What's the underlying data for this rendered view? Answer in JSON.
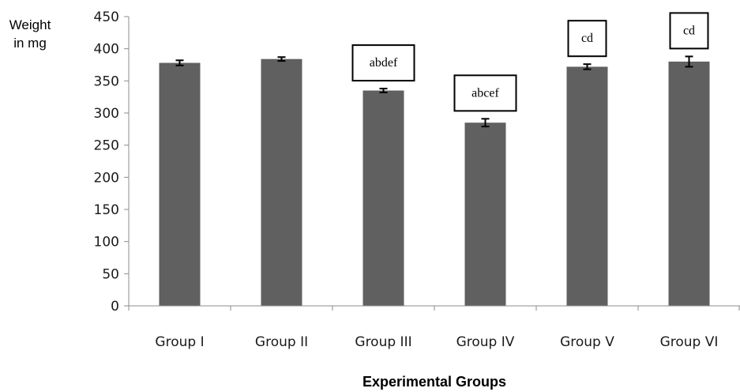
{
  "chart_data": {
    "type": "bar",
    "categories": [
      "Group I",
      "Group II",
      "Group III",
      "Group IV",
      "Group V",
      "Group VI"
    ],
    "values": [
      378,
      384,
      335,
      285,
      372,
      380
    ],
    "errors": [
      4,
      3,
      3,
      6,
      4,
      8
    ],
    "annotations": [
      "",
      "",
      "abdef",
      "abcef",
      "cd",
      "cd"
    ],
    "ylabel": [
      "Weight",
      "in mg"
    ],
    "xlabel": "Experimental Groups",
    "ylim": [
      0,
      450
    ],
    "yticks": [
      0,
      50,
      100,
      150,
      200,
      250,
      300,
      350,
      400,
      450
    ],
    "bar_color": "#606060",
    "grid": false,
    "legend": "none"
  }
}
